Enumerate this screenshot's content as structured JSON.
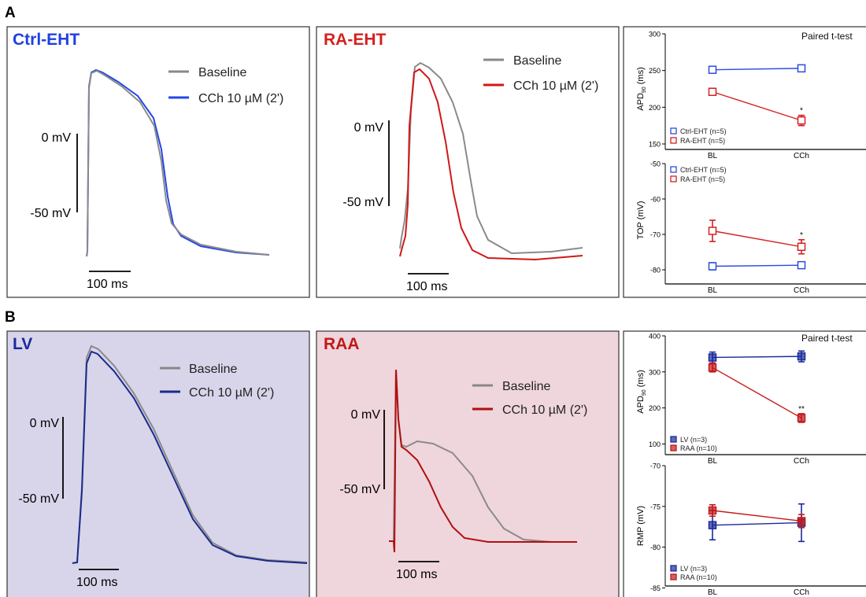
{
  "figure": {
    "sections": [
      {
        "letter": "A",
        "panels": [
          {
            "title": "Ctrl-EHT",
            "legend": [
              "Baseline",
              "CCh 10 µM (2')"
            ],
            "scale_v_top": "0 mV",
            "scale_v_bottom": "-50 mV",
            "scale_t": "100 ms",
            "colors": {
              "title": "#2040e0",
              "baseline": "#888888",
              "cch": "#2347ea",
              "bg": "#ffffff"
            }
          },
          {
            "title": "RA-EHT",
            "legend": [
              "Baseline",
              "CCh 10 µM (2')"
            ],
            "scale_v_top": "0 mV",
            "scale_v_bottom": "-50 mV",
            "scale_t": "100 ms",
            "colors": {
              "title": "#d42020",
              "baseline": "#888888",
              "cch": "#d01818",
              "bg": "#ffffff"
            }
          }
        ]
      },
      {
        "letter": "B",
        "panels": [
          {
            "title": "LV",
            "legend": [
              "Baseline",
              "CCh 10 µM (2')"
            ],
            "scale_v_top": "0 mV",
            "scale_v_bottom": "-50 mV",
            "scale_t": "100 ms",
            "colors": {
              "title": "#1a2a9a",
              "baseline": "#888888",
              "cch": "#1a2a8a",
              "bg": "#d8d5ea"
            }
          },
          {
            "title": "RAA",
            "legend": [
              "Baseline",
              "CCh 10 µM (2')"
            ],
            "scale_v_top": "0 mV",
            "scale_v_bottom": "-50 mV",
            "scale_t": "100 ms",
            "colors": {
              "title": "#c01818",
              "baseline": "#888888",
              "cch": "#b01010",
              "bg": "#efd5dc"
            }
          }
        ]
      }
    ]
  },
  "chart_data": [
    {
      "type": "line",
      "title": "Paired t-test",
      "ylabel": "APD90 (ms)",
      "ylabel_main": "APD",
      "ylabel_sub": "90",
      "ylabel_unit": "(ms)",
      "categories": [
        "BL",
        "CCh"
      ],
      "ylim": [
        150,
        300
      ],
      "yticks": [
        150,
        200,
        250,
        300
      ],
      "series": [
        {
          "name": "Ctrl-EHT (n=5)",
          "values": [
            251,
            253
          ],
          "err": [
            2,
            2
          ],
          "color": "#2a4de0",
          "filled": false
        },
        {
          "name": "RA-EHT (n=5)",
          "values": [
            221,
            182
          ],
          "err": [
            2,
            7
          ],
          "color": "#d42020",
          "filled": false
        }
      ],
      "annotations": [
        {
          "x": "CCh",
          "series": 1,
          "text": "*"
        }
      ],
      "legend": "bottom-left"
    },
    {
      "type": "line",
      "title": "",
      "ylabel": "TOP (mV)",
      "ylabel_main": "TOP (mV)",
      "ylabel_sub": "",
      "ylabel_unit": "",
      "categories": [
        "BL",
        "CCh"
      ],
      "ylim": [
        -82,
        -50
      ],
      "yticks": [
        -80,
        -70,
        -60,
        -50
      ],
      "series": [
        {
          "name": "Ctrl-EHT (n=5)",
          "values": [
            -79,
            -78.7
          ],
          "err": [
            1,
            0.8
          ],
          "color": "#2a4de0",
          "filled": false
        },
        {
          "name": "RA-EHT (n=5)",
          "values": [
            -69,
            -73.5
          ],
          "err": [
            3,
            2
          ],
          "color": "#d42020",
          "filled": false
        }
      ],
      "annotations": [
        {
          "x": "CCh",
          "series": 1,
          "text": "*"
        }
      ],
      "legend": "top-left"
    },
    {
      "type": "line",
      "title": "Paired t-test",
      "ylabel": "APD90 (ms)",
      "ylabel_main": "APD",
      "ylabel_sub": "90",
      "ylabel_unit": "(ms)",
      "categories": [
        "BL",
        "CCh"
      ],
      "ylim": [
        90,
        400
      ],
      "yticks": [
        100,
        200,
        300,
        400
      ],
      "series": [
        {
          "name": "LV (n=3)",
          "values": [
            340,
            343
          ],
          "err": [
            15,
            15
          ],
          "color": "#1a2a9a",
          "filled": true
        },
        {
          "name": "RAA (n=10)",
          "values": [
            312,
            172
          ],
          "err": [
            12,
            12
          ],
          "color": "#c21a1a",
          "filled": true
        }
      ],
      "annotations": [
        {
          "x": "CCh",
          "series": 1,
          "text": "**"
        }
      ],
      "legend": "bottom-left"
    },
    {
      "type": "line",
      "title": "",
      "ylabel": "RMP (mV)",
      "ylabel_main": "RMP (mV)",
      "ylabel_sub": "",
      "ylabel_unit": "",
      "categories": [
        "BL",
        "CCh"
      ],
      "ylim": [
        -86.5,
        -70
      ],
      "yticks": [
        -85,
        -80,
        -75,
        -70
      ],
      "series": [
        {
          "name": "LV (n=3)",
          "values": [
            -77.3,
            -77
          ],
          "err": [
            1.8,
            2.3
          ],
          "color": "#1a2a9a",
          "filled": true
        },
        {
          "name": "RAA (n=10)",
          "values": [
            -75.5,
            -76.8
          ],
          "err": [
            0.7,
            0.8
          ],
          "color": "#c21a1a",
          "filled": true
        }
      ],
      "annotations": [],
      "legend": "bottom-left"
    }
  ]
}
